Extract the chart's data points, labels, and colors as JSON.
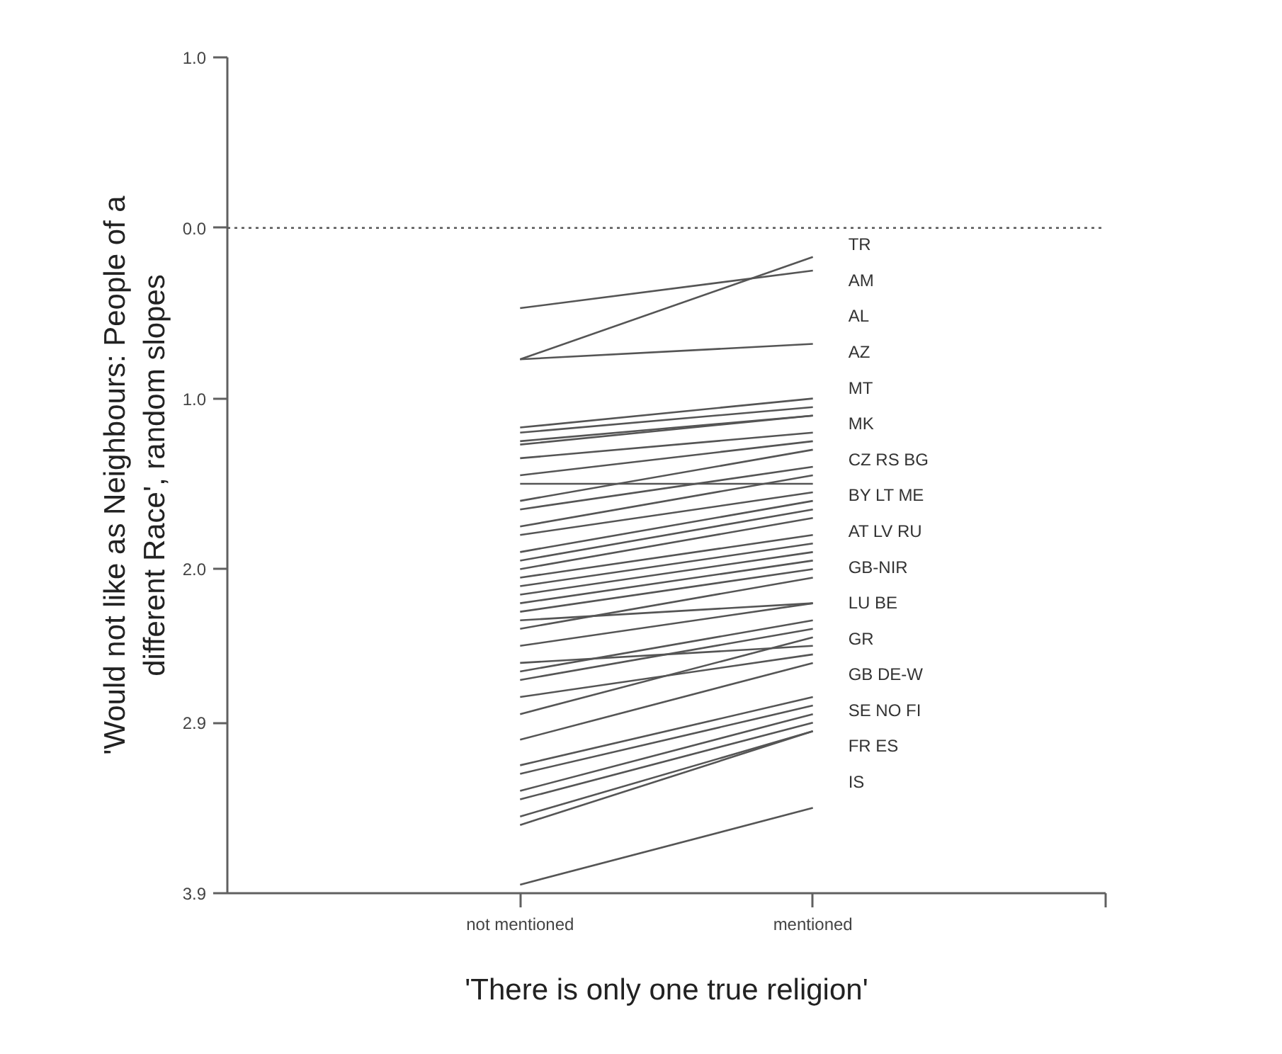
{
  "chart_data": {
    "type": "line",
    "xlabel": "'There is only one true religion'",
    "ylabel": "'Would not like as Neighbours: People of a\ndifferent Race', random slopes",
    "categories": [
      "not mentioned",
      "mentioned"
    ],
    "ylim": [
      3.9,
      -1
    ],
    "yticks": [
      {
        "value": -1,
        "label": "1.0"
      },
      {
        "value": 0,
        "label": "0.0"
      },
      {
        "value": 1,
        "label": "1.0"
      },
      {
        "value": 2,
        "label": "2.0"
      },
      2.9,
      3.9
    ],
    "grid": false,
    "ref_lines": [
      {
        "axis": "y",
        "value": 0,
        "line_style": "dotted",
        "color": "#555555"
      }
    ],
    "series": [
      {
        "color": "#555555",
        "values": [
          0.77,
          0.17
        ]
      },
      {
        "color": "#555555",
        "values": [
          0.47,
          0.25
        ]
      },
      {
        "color": "#555555",
        "values": [
          0.77,
          0.68
        ]
      },
      {
        "color": "#555555",
        "values": [
          1.17,
          1.0
        ]
      },
      {
        "color": "#555555",
        "values": [
          1.2,
          1.05
        ]
      },
      {
        "color": "#555555",
        "values": [
          1.25,
          1.1
        ]
      },
      {
        "color": "#555555",
        "values": [
          1.27,
          1.1
        ]
      },
      {
        "color": "#555555",
        "values": [
          1.35,
          1.2
        ]
      },
      {
        "color": "#555555",
        "values": [
          1.45,
          1.25
        ]
      },
      {
        "color": "#555555",
        "values": [
          1.5,
          1.5
        ]
      },
      {
        "color": "#555555",
        "values": [
          1.6,
          1.3
        ]
      },
      {
        "color": "#555555",
        "values": [
          1.65,
          1.4
        ]
      },
      {
        "color": "#555555",
        "values": [
          1.75,
          1.45
        ]
      },
      {
        "color": "#555555",
        "values": [
          1.8,
          1.55
        ]
      },
      {
        "color": "#555555",
        "values": [
          1.9,
          1.6
        ]
      },
      {
        "color": "#555555",
        "values": [
          1.95,
          1.65
        ]
      },
      {
        "color": "#555555",
        "values": [
          2.0,
          1.7
        ]
      },
      {
        "color": "#555555",
        "values": [
          2.05,
          1.8
        ]
      },
      {
        "color": "#555555",
        "values": [
          2.1,
          1.85
        ]
      },
      {
        "color": "#555555",
        "values": [
          2.15,
          1.9
        ]
      },
      {
        "color": "#555555",
        "values": [
          2.2,
          1.95
        ]
      },
      {
        "color": "#555555",
        "values": [
          2.25,
          2.0
        ]
      },
      {
        "color": "#555555",
        "values": [
          2.3,
          2.2
        ]
      },
      {
        "color": "#555555",
        "values": [
          2.35,
          2.05
        ]
      },
      {
        "color": "#555555",
        "values": [
          2.45,
          2.2
        ]
      },
      {
        "color": "#555555",
        "values": [
          2.55,
          2.45
        ]
      },
      {
        "color": "#555555",
        "values": [
          2.6,
          2.3
        ]
      },
      {
        "color": "#555555",
        "values": [
          2.65,
          2.35
        ]
      },
      {
        "color": "#555555",
        "values": [
          2.75,
          2.5
        ]
      },
      {
        "color": "#555555",
        "values": [
          2.85,
          2.4
        ]
      },
      {
        "color": "#555555",
        "values": [
          3.0,
          2.55
        ]
      },
      {
        "color": "#555555",
        "values": [
          3.15,
          2.75
        ]
      },
      {
        "color": "#555555",
        "values": [
          3.2,
          2.8
        ]
      },
      {
        "color": "#555555",
        "values": [
          3.3,
          2.85
        ]
      },
      {
        "color": "#555555",
        "values": [
          3.35,
          2.9
        ]
      },
      {
        "color": "#555555",
        "values": [
          3.45,
          2.95
        ]
      },
      {
        "color": "#555555",
        "values": [
          3.5,
          2.95
        ]
      },
      {
        "color": "#555555",
        "values": [
          3.85,
          3.4
        ]
      }
    ],
    "annotations": [
      "TR",
      "AM",
      "AL",
      "AZ",
      "MT",
      "MK",
      "CZ RS BG",
      "BY  LT ME",
      "AT LV RU",
      "GB-NIR",
      "LU BE",
      "GR",
      "GB DE-W",
      "SE NO FI",
      "FR ES",
      "IS"
    ]
  }
}
